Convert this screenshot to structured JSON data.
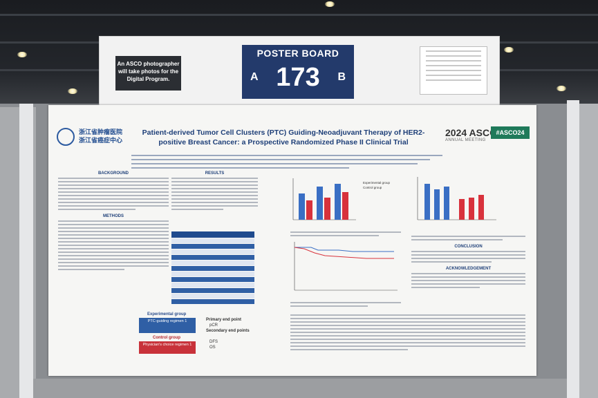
{
  "header_board": {
    "asco_note": "An ASCO photographer will take photos for the Digital Program.",
    "poster_board_label": "POSTER BOARD",
    "board_number": "173",
    "side_a": "A",
    "side_b": "B"
  },
  "poster": {
    "institution_cn": "浙江省肿瘤医院",
    "institution_cn2": "浙江省癌症中心",
    "title": "Patient-derived Tumor Cell Clusters (PTC) Guiding-Neoadjuvant Therapy of HER2-positive Breast Cancer: a Prospective Randomized Phase II Clinical Trial",
    "meeting": "2024 ASCO",
    "meeting_sub": "ANNUAL MEETING",
    "hashtag": "#ASCO24",
    "sections": {
      "background": "BACKGROUND",
      "methods": "METHODS",
      "results": "RESULTS",
      "conclusion": "CONCLUSION",
      "acknowledgement": "ACKNOWLEDGEMENT"
    },
    "flowchart": {
      "experimental_group": "Experimental group",
      "ptc_regimen": "PTC-guiding regimen 1",
      "control_group": "Control group",
      "physician_regimen": "Physician's choice regimen 1",
      "primary_endpoint": "Primary end point",
      "pcr": "pCR",
      "secondary_endpoints": "Secondary end points",
      "dfs": "DFS",
      "os": "OS"
    },
    "charts": {
      "legend_exp": "Experimental group",
      "legend_ctrl": "Control group"
    }
  }
}
